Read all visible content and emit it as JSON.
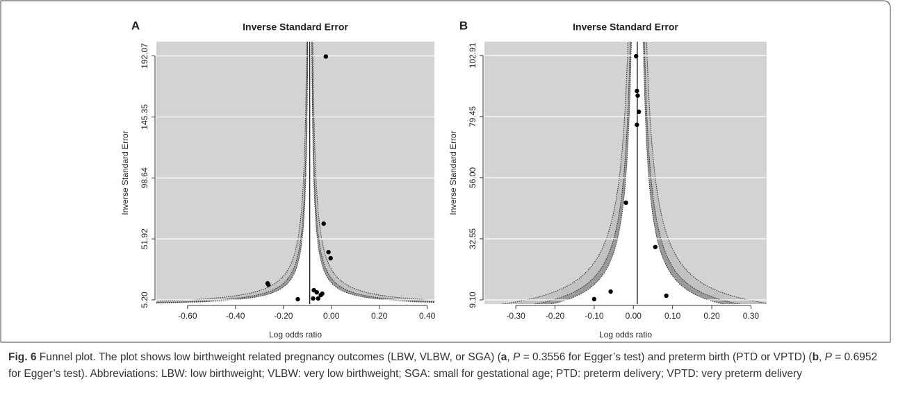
{
  "chart_data": [
    {
      "type": "funnel",
      "panel": "A",
      "title": "Inverse Standard Error",
      "x_label": "Log odds ratio",
      "y_label": "Inverse Standard Error",
      "x": [
        -0.023,
        -0.032,
        -0.012,
        -0.003,
        -0.266,
        -0.263,
        -0.073,
        -0.061,
        -0.038,
        -0.044,
        -0.14,
        -0.076,
        -0.055
      ],
      "values": [
        191.6,
        63.6,
        41.8,
        37.1,
        17.9,
        16.9,
        12.6,
        11.0,
        10.0,
        8.9,
        5.7,
        6.3,
        6.3
      ],
      "summary_estimate": -0.09,
      "xlim": [
        -0.73,
        0.43
      ],
      "ylim": [
        2.0,
        203.0
      ],
      "xticks": [
        {
          "value": -0.6,
          "label": "-0.60"
        },
        {
          "value": -0.4,
          "label": "-0.40"
        },
        {
          "value": -0.2,
          "label": "-0.20"
        },
        {
          "value": 0,
          "label": "0.00"
        },
        {
          "value": 0.2,
          "label": "0.20"
        },
        {
          "value": 0.4,
          "label": "0.40"
        }
      ],
      "yticks": [
        {
          "value": 5.2,
          "label": "5.20"
        },
        51.92,
        98.64,
        145.35,
        192.07
      ],
      "grid": true,
      "background": "#d3d3d3",
      "color": "#000000",
      "contours": [
        {
          "z": 2.576,
          "fill": "#c2c2c2"
        },
        {
          "z": 1.96,
          "fill": "#9a9a9a"
        },
        {
          "z": 1.645,
          "fill": "#ffffff"
        }
      ]
    },
    {
      "type": "funnel",
      "panel": "B",
      "title": "Inverse Standard Error",
      "x_label": "Log odds ratio",
      "y_label": "Inverse Standard Error",
      "x": [
        0.007,
        0.009,
        0.011,
        0.014,
        0.009,
        -0.019,
        0.056,
        -0.058,
        0.084,
        -0.1
      ],
      "values": [
        102.6,
        89.3,
        87.5,
        81.3,
        76.3,
        46.4,
        29.4,
        12.3,
        10.7,
        9.4
      ],
      "summary_estimate": 0.01,
      "xlim": [
        -0.38,
        0.34
      ],
      "ylim": [
        7.5,
        108.2
      ],
      "xticks": [
        {
          "value": -0.3,
          "label": "-0.30"
        },
        {
          "value": -0.2,
          "label": "-0.20"
        },
        {
          "value": -0.1,
          "label": "-0.10"
        },
        {
          "value": 0,
          "label": "0.00"
        },
        {
          "value": 0.1,
          "label": "0.10"
        },
        {
          "value": 0.2,
          "label": "0.20"
        },
        {
          "value": 0.3,
          "label": "0.30"
        }
      ],
      "yticks": [
        {
          "value": 9.1,
          "label": "9.10"
        },
        32.55,
        {
          "value": 56,
          "label": "56.00"
        },
        79.45,
        102.91
      ],
      "grid": true,
      "background": "#d3d3d3",
      "color": "#000000",
      "contours": [
        {
          "z": 2.576,
          "fill": "#c2c2c2"
        },
        {
          "z": 1.96,
          "fill": "#9a9a9a"
        },
        {
          "z": 1.645,
          "fill": "#ffffff"
        }
      ]
    }
  ],
  "caption": {
    "runs": [
      {
        "text": "Fig. 6",
        "style": "bold"
      },
      {
        "text": " Funnel plot. The plot shows low birthweight related pregnancy outcomes (LBW, VLBW, or SGA) (",
        "style": "normal"
      },
      {
        "text": "a",
        "style": "bold"
      },
      {
        "text": ", ",
        "style": "normal"
      },
      {
        "text": "P",
        "style": "italic"
      },
      {
        "text": " = 0.3556 for Egger’s test) and preterm birth (PTD or VPTD) (",
        "style": "normal"
      },
      {
        "text": "b",
        "style": "bold"
      },
      {
        "text": ", ",
        "style": "normal"
      },
      {
        "text": "P",
        "style": "italic"
      },
      {
        "text": " = 0.6952 for Egger’s test). Abbreviations: LBW: low birthweight; VLBW: very low birthweight; SGA: small for gestational age; PTD: preterm delivery; VPTD: very preterm delivery",
        "style": "normal"
      }
    ]
  }
}
